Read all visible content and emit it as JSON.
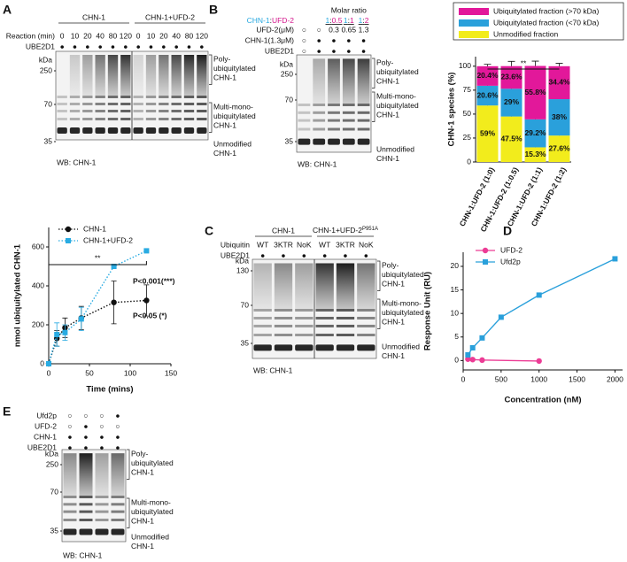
{
  "panels": {
    "A": {
      "letter": "A",
      "groups": [
        "CHN-1",
        "CHN-1+UFD-2"
      ],
      "rows": [
        {
          "label": "Reaction (min)",
          "cells": [
            "0",
            "10",
            "20",
            "40",
            "80",
            "120",
            "0",
            "10",
            "20",
            "40",
            "80",
            "120"
          ]
        },
        {
          "label": "UBE2D1",
          "cells": [
            "●",
            "●",
            "●",
            "●",
            "●",
            "●",
            "●",
            "●",
            "●",
            "●",
            "●",
            "●"
          ]
        }
      ],
      "kda": "kDa",
      "markers": [
        "250",
        "70",
        "35"
      ],
      "bands": [
        [
          "Poly-",
          "ubiquitylated",
          "CHN-1"
        ],
        [
          "Multi-mono-",
          "ubiquitylated",
          "CHN-1"
        ],
        [
          "Unmodified",
          "CHN-1"
        ]
      ],
      "wb": "WB: CHN-1"
    },
    "B": {
      "letter": "B",
      "ratio_title": "Molar ratio",
      "ratio_key": [
        "CHN-1",
        ":",
        "UFD-2"
      ],
      "ratio_colors": [
        "#29a9e0",
        "#d4168c"
      ],
      "ratios": [
        [
          "1",
          ":",
          "0.5"
        ],
        [
          "1",
          ":",
          "1"
        ],
        [
          "1",
          ":",
          "2"
        ]
      ],
      "rows": [
        {
          "label": "UFD-2(μM)",
          "cells": [
            "○",
            "○",
            "0.3",
            "0.65",
            "1.3"
          ]
        },
        {
          "label": "CHN-1(1.3μM)",
          "cells": [
            "○",
            "●",
            "●",
            "●",
            "●"
          ]
        },
        {
          "label": "UBE2D1",
          "cells": [
            "○",
            "●",
            "●",
            "●",
            "●"
          ]
        }
      ],
      "kda": "kDa",
      "markers": [
        "250",
        "70",
        "35"
      ],
      "bands": [
        [
          "Poly-",
          "ubiquitylated",
          "CHN-1"
        ],
        [
          "Multi-mono-",
          "ubiquitylated",
          "CHN-1"
        ],
        [
          "Unmodified",
          "CHN-1"
        ]
      ],
      "wb": "WB: CHN-1"
    },
    "C": {
      "letter": "C",
      "groups": [
        "CHN-1",
        "CHN-1+UFD-2"
      ],
      "group_sup": "P951A",
      "rows": [
        {
          "label": "Ubiquitin",
          "cells": [
            "WT",
            "3KTR",
            "NoK",
            "WT",
            "3KTR",
            "NoK"
          ]
        },
        {
          "label": "UBE2D1",
          "cells": [
            "●",
            "●",
            "●",
            "●",
            "●",
            "●"
          ]
        }
      ],
      "kda": "kDa",
      "markers": [
        "130",
        "70",
        "35"
      ],
      "bands": [
        [
          "Poly-",
          "ubiquitylated",
          "CHN-1"
        ],
        [
          "Multi-mono-",
          "ubiquitylated",
          "CHN-1"
        ],
        [
          "Unmodified",
          "CHN-1"
        ]
      ],
      "wb": "WB: CHN-1"
    },
    "D": {
      "letter": "D"
    },
    "E": {
      "letter": "E",
      "rows": [
        {
          "label": "Ufd2p",
          "cells": [
            "○",
            "○",
            "○",
            "●"
          ]
        },
        {
          "label": "UFD-2",
          "cells": [
            "○",
            "●",
            "○",
            "○"
          ]
        },
        {
          "label": "CHN-1",
          "cells": [
            "●",
            "●",
            "●",
            "●"
          ]
        },
        {
          "label": "UBE2D1",
          "cells": [
            "●",
            "●",
            "●",
            "●"
          ]
        }
      ],
      "kda": "kDa",
      "markers": [
        "250",
        "70",
        "35"
      ],
      "bands": [
        [
          "Poly-",
          "ubiquitylated",
          "CHN-1"
        ],
        [
          "Multi-mono-",
          "ubiquitylated",
          "CHN-1"
        ],
        [
          "Unmodified",
          "CHN-1"
        ]
      ],
      "wb": "WB: CHN-1"
    }
  },
  "chart_data": [
    {
      "type": "stacked_bar",
      "ylabel": "CHN-1 species (%)",
      "categories": [
        "CHN-1:UFD-2 (1:0)",
        "CHN-1:UFD-2 (1:0.5)",
        "CHN-1:UFD-2 (1:1)",
        "CHN-1:UFD-2 (1:2)"
      ],
      "series": [
        {
          "name": "Unmodified fraction",
          "color": "#f2ec1c",
          "values": [
            59,
            47.5,
            15.3,
            27.6
          ],
          "value_labels": [
            "59%",
            "47.5%",
            "15.3%",
            "27.6%"
          ],
          "errors": [
            3,
            1,
            1,
            1.5
          ]
        },
        {
          "name": "Ubiquitylated fraction (<70 kDa)",
          "color": "#2aa0db",
          "values": [
            20.6,
            29,
            29.2,
            38
          ],
          "value_labels": [
            "20.6%",
            "29%",
            "29.2%",
            "38%"
          ],
          "errors": [
            2,
            1,
            3,
            1
          ]
        },
        {
          "name": "Ubiquitylated fraction (>70 kDa)",
          "color": "#e2189a",
          "values": [
            20.4,
            23.6,
            55.8,
            34.4
          ],
          "value_labels": [
            "20.4%",
            "23.6%",
            "55.8%",
            "34.4%"
          ],
          "errors": [
            2,
            5,
            5,
            3
          ]
        }
      ],
      "ylim": [
        0,
        110
      ],
      "yticks": [
        0,
        25,
        50,
        75,
        100
      ],
      "significance": "**"
    },
    {
      "type": "line",
      "xlabel": "Time (mins)",
      "ylabel": "nmol ubiquitylated CHN-1",
      "line_style": "dotted",
      "x": [
        0,
        10,
        20,
        40,
        80,
        120
      ],
      "series": [
        {
          "name": "CHN-1",
          "color": "#111111",
          "marker": "circle",
          "values": [
            0,
            130,
            185,
            235,
            315,
            325
          ],
          "errors": [
            0,
            40,
            50,
            60,
            110,
            80
          ]
        },
        {
          "name": "CHN-1+UFD-2",
          "color": "#29abe2",
          "marker": "square",
          "values": [
            0,
            150,
            160,
            230,
            500,
            580
          ],
          "errors": [
            0,
            60,
            40,
            60,
            0,
            0
          ]
        }
      ],
      "xlim": [
        0,
        150
      ],
      "xticks": [
        0,
        50,
        100,
        150
      ],
      "ylim": [
        0,
        700
      ],
      "yticks": [
        0,
        200,
        400,
        600
      ],
      "significance": "**",
      "annotations": [
        {
          "text": "P<0.001(***)",
          "color": "#29abe2"
        },
        {
          "text": "P<0.05 (*)",
          "color": "#111111"
        }
      ]
    },
    {
      "type": "line",
      "xlabel": "Concentration (nM)",
      "ylabel": "Response Unit (RU)",
      "line_style": "solid",
      "series": [
        {
          "name": "UFD-2",
          "color": "#ec3c95",
          "marker": "circle",
          "x": [
            62.5,
            125,
            250,
            1000
          ],
          "values": [
            0.3,
            0.2,
            0.1,
            -0.1
          ]
        },
        {
          "name": "Ufd2p",
          "color": "#2aa0db",
          "marker": "square",
          "x": [
            62.5,
            125,
            250,
            500,
            1000,
            2000
          ],
          "values": [
            1.2,
            2.7,
            4.8,
            9.2,
            13.9,
            21.6
          ]
        }
      ],
      "xlim": [
        0,
        2100
      ],
      "xticks": [
        0,
        500,
        1000,
        1500,
        2000
      ],
      "ylim": [
        -2,
        23
      ],
      "yticks": [
        0,
        5,
        10,
        15,
        20
      ]
    }
  ]
}
